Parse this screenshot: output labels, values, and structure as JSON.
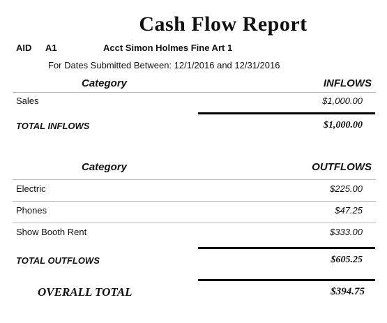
{
  "report": {
    "title": "Cash Flow Report",
    "aid_label": "AID",
    "aid_value": "A1",
    "account": "Acct Simon Holmes Fine Art 1",
    "date_range": "For Dates Submitted Between: 12/1/2016 and 12/31/2016"
  },
  "inflows": {
    "category_header": "Category",
    "amount_header": "INFLOWS",
    "rows": [
      {
        "category": "Sales",
        "amount": "$1,000.00"
      }
    ],
    "total_label": "TOTAL INFLOWS",
    "total_amount": "$1,000.00"
  },
  "outflows": {
    "category_header": "Category",
    "amount_header": "OUTFLOWS",
    "rows": [
      {
        "category": "Electric",
        "amount": "$225.00"
      },
      {
        "category": "Phones",
        "amount": "$47.25"
      },
      {
        "category": "Show Booth Rent",
        "amount": "$333.00"
      }
    ],
    "total_label": "TOTAL OUTFLOWS",
    "total_amount": "$605.25"
  },
  "overall": {
    "label": "OVERALL TOTAL",
    "amount": "$394.75"
  }
}
